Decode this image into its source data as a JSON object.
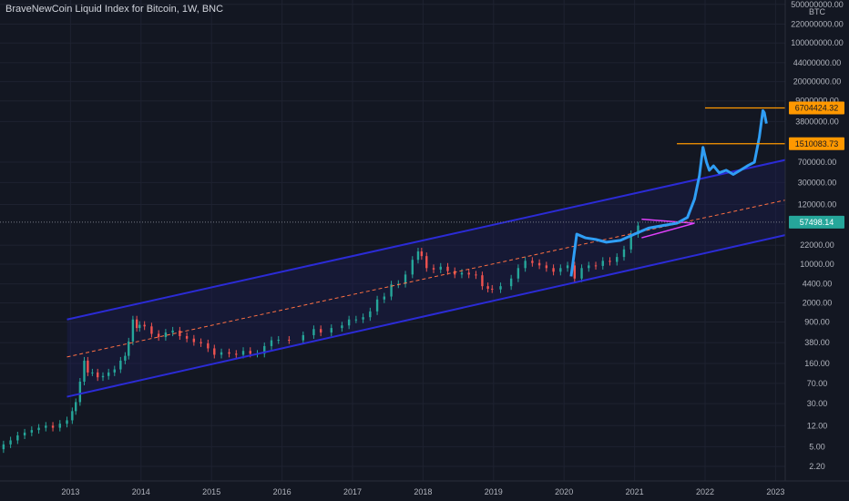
{
  "header": {
    "title": "BraveNewCoin Liquid Index for Bitcoin, 1W, BNC"
  },
  "colors": {
    "background": "#131722",
    "grid": "#1e2230",
    "channel": "#2b2bd6",
    "channel_fill": "#1c1c5a",
    "midline": "#ff7043",
    "projection": "#2f9ef5",
    "triangle": "#e040fb",
    "resistance": "#ff9800",
    "current_price": "#26a69a",
    "axis_text": "#b2b5be",
    "candle_up": "#26a69a",
    "candle_down": "#ef5350"
  },
  "chart_data": {
    "type": "line",
    "title": "BraveNewCoin Liquid Index for Bitcoin, 1W, BNC",
    "currency_label": "BTC",
    "scale": "log",
    "grid": true,
    "x_axis": {
      "tick_labels": [
        "2013",
        "2014",
        "2015",
        "2016",
        "2017",
        "2018",
        "2019",
        "2020",
        "2021",
        "2022",
        "2023"
      ]
    },
    "y_axis": {
      "tick_labels": [
        "500000000.00",
        "220000000.00",
        "100000000.00",
        "44000000.00",
        "20000000.00",
        "9000000.00",
        "3800000.00",
        "700000.00",
        "300000.00",
        "120000.00",
        "22000.00",
        "10000.00",
        "4400.00",
        "2000.00",
        "900.00",
        "380.00",
        "160.00",
        "70.00",
        "30.00",
        "12.00",
        "5.00",
        "2.20"
      ],
      "tick_values": [
        500000000,
        220000000,
        100000000,
        44000000,
        20000000,
        9000000,
        3800000,
        700000,
        300000,
        120000,
        22000,
        10000,
        4400,
        2000,
        900,
        380,
        160,
        70,
        30,
        12,
        5,
        2.2
      ],
      "range": [
        1.2,
        600000000
      ]
    },
    "series": [
      {
        "type": "candlestick",
        "points": [
          [
            2012.0,
            4.5
          ],
          [
            2012.1,
            5.5
          ],
          [
            2012.2,
            6.5
          ],
          [
            2012.3,
            8
          ],
          [
            2012.4,
            9
          ],
          [
            2012.5,
            10
          ],
          [
            2012.6,
            11
          ],
          [
            2012.7,
            12
          ],
          [
            2012.8,
            11
          ],
          [
            2012.9,
            13
          ],
          [
            2013.0,
            15
          ],
          [
            2013.05,
            22
          ],
          [
            2013.1,
            32
          ],
          [
            2013.17,
            75
          ],
          [
            2013.22,
            180
          ],
          [
            2013.27,
            110
          ],
          [
            2013.35,
            110
          ],
          [
            2013.42,
            90
          ],
          [
            2013.5,
            95
          ],
          [
            2013.58,
            110
          ],
          [
            2013.67,
            125
          ],
          [
            2013.75,
            180
          ],
          [
            2013.8,
            220
          ],
          [
            2013.85,
            400
          ],
          [
            2013.92,
            1000
          ],
          [
            2013.96,
            700
          ],
          [
            2014.0,
            800
          ],
          [
            2014.1,
            750
          ],
          [
            2014.2,
            550
          ],
          [
            2014.3,
            480
          ],
          [
            2014.4,
            580
          ],
          [
            2014.5,
            630
          ],
          [
            2014.6,
            500
          ],
          [
            2014.7,
            450
          ],
          [
            2014.8,
            390
          ],
          [
            2014.9,
            370
          ],
          [
            2015.0,
            300
          ],
          [
            2015.08,
            230
          ],
          [
            2015.2,
            255
          ],
          [
            2015.3,
            240
          ],
          [
            2015.4,
            230
          ],
          [
            2015.5,
            270
          ],
          [
            2015.6,
            240
          ],
          [
            2015.7,
            240
          ],
          [
            2015.8,
            330
          ],
          [
            2015.9,
            420
          ],
          [
            2016.0,
            430
          ],
          [
            2016.2,
            420
          ],
          [
            2016.4,
            520
          ],
          [
            2016.5,
            670
          ],
          [
            2016.6,
            580
          ],
          [
            2016.8,
            700
          ],
          [
            2016.9,
            780
          ],
          [
            2017.0,
            1000
          ],
          [
            2017.1,
            1000
          ],
          [
            2017.2,
            1100
          ],
          [
            2017.3,
            1400
          ],
          [
            2017.4,
            2300
          ],
          [
            2017.5,
            2600
          ],
          [
            2017.6,
            4300
          ],
          [
            2017.7,
            4400
          ],
          [
            2017.8,
            6500
          ],
          [
            2017.9,
            12000
          ],
          [
            2017.96,
            17000
          ],
          [
            2018.0,
            14000
          ],
          [
            2018.1,
            8500
          ],
          [
            2018.2,
            8000
          ],
          [
            2018.3,
            9000
          ],
          [
            2018.4,
            7500
          ],
          [
            2018.5,
            6500
          ],
          [
            2018.6,
            7000
          ],
          [
            2018.7,
            6500
          ],
          [
            2018.8,
            6300
          ],
          [
            2018.88,
            4000
          ],
          [
            2018.96,
            3600
          ],
          [
            2019.0,
            3500
          ],
          [
            2019.2,
            4000
          ],
          [
            2019.3,
            5500
          ],
          [
            2019.4,
            8500
          ],
          [
            2019.5,
            11500
          ],
          [
            2019.6,
            10500
          ],
          [
            2019.7,
            9500
          ],
          [
            2019.8,
            8500
          ],
          [
            2019.9,
            7300
          ],
          [
            2020.0,
            8500
          ],
          [
            2020.1,
            9500
          ],
          [
            2020.2,
            5500
          ],
          [
            2020.3,
            8500
          ],
          [
            2020.4,
            9500
          ],
          [
            2020.5,
            9300
          ],
          [
            2020.6,
            11500
          ],
          [
            2020.7,
            11000
          ],
          [
            2020.8,
            13500
          ],
          [
            2020.9,
            18500
          ],
          [
            2021.0,
            35000
          ],
          [
            2021.1,
            50000
          ]
        ]
      },
      {
        "type": "line",
        "name": "projection",
        "points": [
          [
            2020.1,
            6000
          ],
          [
            2020.18,
            35000
          ],
          [
            2020.3,
            30000
          ],
          [
            2020.45,
            28000
          ],
          [
            2020.6,
            25000
          ],
          [
            2020.8,
            27000
          ],
          [
            2021.0,
            35000
          ],
          [
            2021.2,
            45000
          ],
          [
            2021.4,
            50000
          ],
          [
            2021.6,
            55000
          ],
          [
            2021.75,
            70000
          ],
          [
            2021.85,
            150000
          ],
          [
            2021.92,
            400000
          ],
          [
            2021.97,
            1300000
          ],
          [
            2022.02,
            700000
          ],
          [
            2022.06,
            500000
          ],
          [
            2022.12,
            600000
          ],
          [
            2022.2,
            450000
          ],
          [
            2022.3,
            500000
          ],
          [
            2022.4,
            420000
          ],
          [
            2022.5,
            500000
          ],
          [
            2022.6,
            600000
          ],
          [
            2022.7,
            700000
          ],
          [
            2022.77,
            2000000
          ],
          [
            2022.82,
            6000000
          ],
          [
            2022.84,
            5500000
          ],
          [
            2022.87,
            3500000
          ]
        ]
      }
    ],
    "channel": {
      "upper": [
        [
          2012.95,
          1000
        ],
        [
          2023.2,
          800000
        ]
      ],
      "lower": [
        [
          2012.95,
          40
        ],
        [
          2023.2,
          35000
        ]
      ],
      "mid": [
        [
          2012.95,
          210
        ],
        [
          2023.2,
          150000
        ]
      ]
    },
    "triangle": {
      "upper": [
        [
          2021.1,
          65000
        ],
        [
          2021.85,
          55000
        ]
      ],
      "lower": [
        [
          2021.1,
          30000
        ],
        [
          2021.85,
          55000
        ]
      ]
    },
    "hlines": [
      {
        "value": 6704424.32,
        "label": "6704424.32",
        "x_start": 2022.0
      },
      {
        "value": 1510083.73,
        "label": "1510083.73",
        "x_start": 2021.6
      }
    ],
    "current_price": {
      "value": 57498.14,
      "label": "57498.14"
    }
  }
}
